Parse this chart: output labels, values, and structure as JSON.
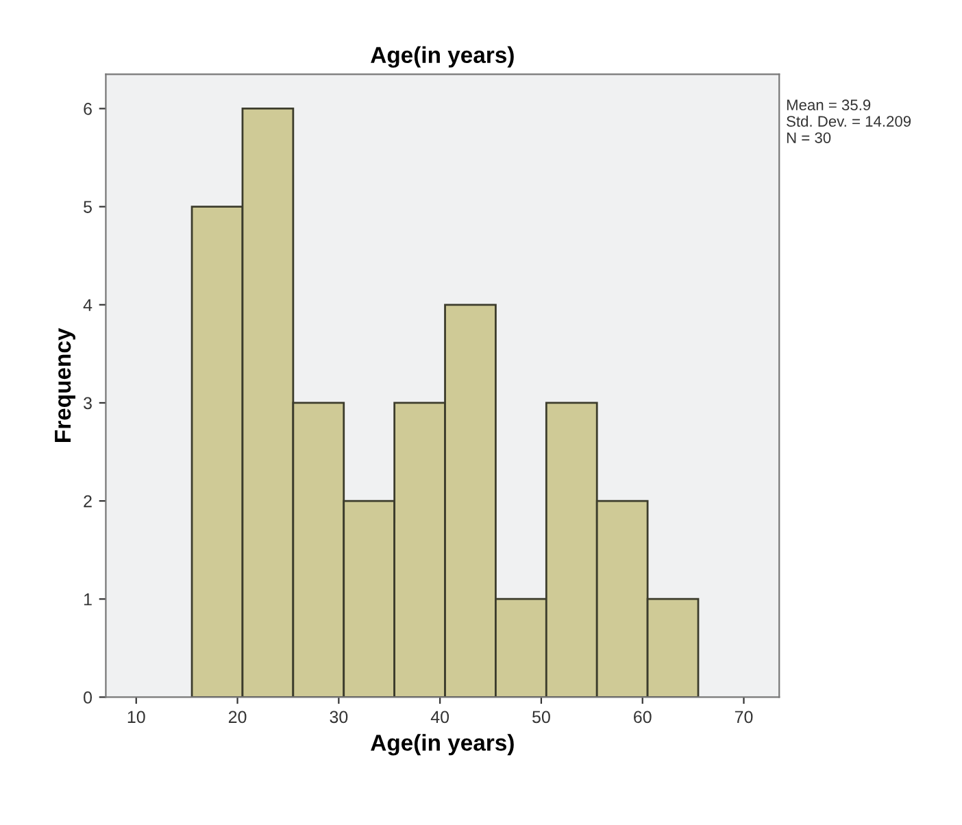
{
  "chart_data": {
    "type": "histogram",
    "title": "Age(in years)",
    "xlabel": "Age(in years)",
    "ylabel": "Frequency",
    "bins": [
      15.5,
      20.5,
      25.5,
      30.5,
      35.5,
      40.5,
      45.5,
      50.5,
      55.5,
      60.5,
      65.5
    ],
    "values": [
      5,
      6,
      3,
      2,
      3,
      4,
      1,
      3,
      2,
      1
    ],
    "color": "#cfca96",
    "xlim": [
      7,
      73.5
    ],
    "xticks": [
      10,
      20,
      30,
      40,
      50,
      60,
      70
    ],
    "ylim": [
      0,
      6.35
    ],
    "yticks": [
      0,
      1,
      2,
      3,
      4,
      5,
      6
    ],
    "grid": false,
    "legend": false,
    "annotations": [
      "Mean = 35.9\nStd. Dev. = 14.209\nN = 30"
    ]
  }
}
